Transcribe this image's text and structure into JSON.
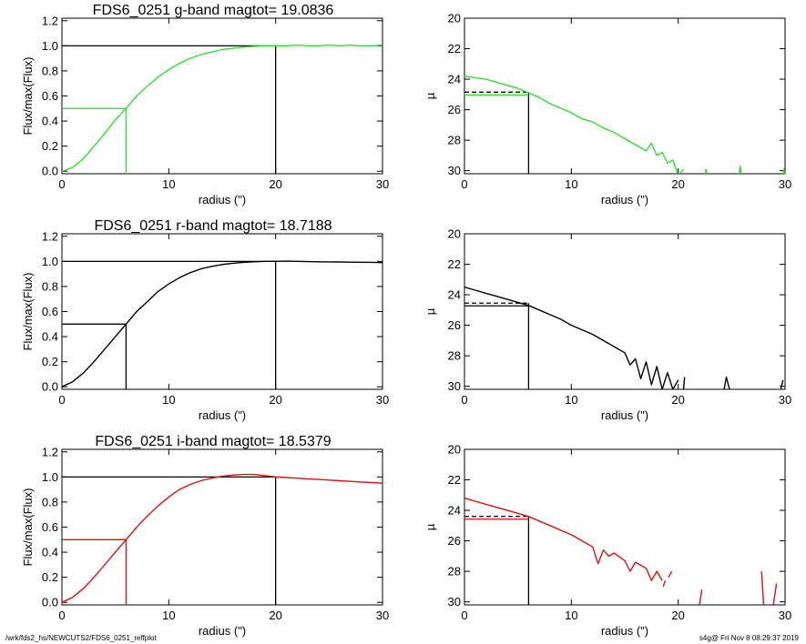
{
  "footer": {
    "left": "/wrk/fds2_hs/NEWCUTS2/FDS6_0251_reffplot",
    "right": "s4g@  Fri Nov  8 08:29:37 2019"
  },
  "chart_data": [
    {
      "type": "line",
      "title": "FDS6_0251 g-band  magtot=     19.0836",
      "xlabel": "radius (\")",
      "ylabel": "Flux/max(Flux)",
      "xlim": [
        0,
        30
      ],
      "ylim": [
        -0.02,
        1.22
      ],
      "xticks": [
        0,
        10,
        20,
        30
      ],
      "yticks": [
        "0.0",
        "0.2",
        "0.4",
        "0.6",
        "0.8",
        "1.0",
        "1.2"
      ],
      "color": "#33dd33",
      "r_half": 6.0,
      "r_tot": 20.0,
      "series": [
        {
          "x": [
            0,
            1,
            2,
            3,
            4,
            5,
            6,
            7,
            8,
            9,
            10,
            11,
            12,
            13,
            14,
            15,
            16,
            17,
            18,
            19,
            20,
            21,
            22,
            23,
            24,
            25,
            26,
            27,
            28,
            29,
            30
          ],
          "y": [
            0.0,
            0.03,
            0.1,
            0.2,
            0.3,
            0.41,
            0.5,
            0.6,
            0.68,
            0.75,
            0.81,
            0.86,
            0.9,
            0.93,
            0.95,
            0.97,
            0.98,
            0.99,
            0.995,
            1.0,
            1.0,
            1.0,
            1.005,
            1.0,
            1.0,
            1.005,
            1.0,
            1.005,
            1.0,
            1.0,
            1.005
          ]
        }
      ]
    },
    {
      "type": "line",
      "title": "",
      "xlabel": "radius (\")",
      "ylabel": "µ",
      "xlim": [
        0,
        30
      ],
      "ylim": [
        30.2,
        20
      ],
      "xticks": [
        0,
        10,
        20,
        30
      ],
      "yticks": [
        "20",
        "22",
        "24",
        "26",
        "28",
        "30"
      ],
      "color": "#33dd33",
      "r_half": 6.0,
      "mu_half": 24.85,
      "series": [
        {
          "x": [
            0,
            1,
            2,
            3,
            4,
            5,
            6,
            7,
            8,
            9,
            10,
            11,
            12,
            13,
            14,
            15,
            16,
            17,
            17.5,
            18,
            18.5,
            19,
            19.5,
            20,
            20.5
          ],
          "y": [
            23.8,
            23.9,
            24.0,
            24.2,
            24.4,
            24.6,
            24.9,
            25.2,
            25.6,
            25.9,
            26.2,
            26.6,
            26.8,
            27.2,
            27.5,
            27.9,
            28.3,
            28.7,
            28.2,
            29.0,
            28.8,
            29.5,
            29.3,
            30.3,
            29.9
          ]
        },
        {
          "x": [
            22.5,
            22.6,
            22.7
          ],
          "y": [
            30.3,
            29.9,
            30.3
          ]
        },
        {
          "x": [
            25.7,
            25.8,
            25.9
          ],
          "y": [
            30.3,
            29.7,
            30.3
          ]
        },
        {
          "x": [
            29.8,
            29.9,
            30.0
          ],
          "y": [
            30.3,
            29.9,
            30.3
          ]
        }
      ]
    },
    {
      "type": "line",
      "title": "FDS6_0251 r-band  magtot=     18.7188",
      "xlabel": "radius (\")",
      "ylabel": "Flux/max(Flux)",
      "xlim": [
        0,
        30
      ],
      "ylim": [
        -0.02,
        1.22
      ],
      "xticks": [
        0,
        10,
        20,
        30
      ],
      "yticks": [
        "0.0",
        "0.2",
        "0.4",
        "0.6",
        "0.8",
        "1.0",
        "1.2"
      ],
      "color": "#000000",
      "r_half": 6.0,
      "r_tot": 20.0,
      "series": [
        {
          "x": [
            0,
            1,
            2,
            3,
            4,
            5,
            6,
            7,
            8,
            9,
            10,
            11,
            12,
            13,
            14,
            15,
            16,
            17,
            18,
            19,
            20,
            21,
            22,
            23,
            24,
            25,
            26,
            27,
            28,
            29,
            30
          ],
          "y": [
            0.0,
            0.04,
            0.11,
            0.2,
            0.3,
            0.4,
            0.5,
            0.6,
            0.68,
            0.76,
            0.82,
            0.87,
            0.91,
            0.94,
            0.96,
            0.975,
            0.985,
            0.992,
            0.997,
            1.0,
            1.0,
            1.002,
            1.0,
            0.998,
            0.997,
            0.996,
            0.995,
            0.994,
            0.993,
            0.992,
            0.99
          ]
        }
      ]
    },
    {
      "type": "line",
      "title": "",
      "xlabel": "radius (\")",
      "ylabel": "µ",
      "xlim": [
        0,
        30
      ],
      "ylim": [
        30.2,
        20
      ],
      "xticks": [
        0,
        10,
        20,
        30
      ],
      "yticks": [
        "20",
        "22",
        "24",
        "26",
        "28",
        "30"
      ],
      "color": "#000000",
      "r_half": 6.0,
      "mu_half": 24.55,
      "series": [
        {
          "x": [
            0,
            1,
            2,
            3,
            4,
            5,
            6,
            7,
            8,
            9,
            10,
            11,
            12,
            13,
            14,
            15,
            15.5,
            16,
            16.5,
            17,
            17.5,
            18,
            18.5,
            19,
            19.5,
            20
          ],
          "y": [
            23.5,
            23.7,
            23.9,
            24.1,
            24.3,
            24.5,
            24.7,
            25.0,
            25.3,
            25.6,
            26.0,
            26.3,
            26.6,
            27.0,
            27.4,
            27.8,
            28.6,
            28.2,
            29.5,
            28.4,
            29.9,
            28.7,
            30.2,
            29.1,
            30.2,
            29.6
          ]
        },
        {
          "x": [
            20.5,
            20.6
          ],
          "y": [
            30.2,
            29.4
          ]
        },
        {
          "x": [
            24.3,
            24.5,
            24.8
          ],
          "y": [
            30.2,
            29.4,
            30.2
          ]
        },
        {
          "x": [
            29.6,
            29.8
          ],
          "y": [
            30.2,
            29.6
          ]
        }
      ]
    },
    {
      "type": "line",
      "title": "FDS6_0251 i-band  magtot=     18.5379",
      "xlabel": "radius (\")",
      "ylabel": "Flux/max(Flux)",
      "xlim": [
        0,
        30
      ],
      "ylim": [
        -0.02,
        1.22
      ],
      "xticks": [
        0,
        10,
        20,
        30
      ],
      "yticks": [
        "0.0",
        "0.2",
        "0.4",
        "0.6",
        "0.8",
        "1.0",
        "1.2"
      ],
      "color": "#dd1111",
      "r_half": 6.0,
      "r_tot": 20.0,
      "series": [
        {
          "x": [
            0,
            1,
            2,
            3,
            4,
            5,
            6,
            7,
            8,
            9,
            10,
            11,
            12,
            13,
            14,
            15,
            16,
            17,
            18,
            19,
            20,
            21,
            22,
            23,
            24,
            25,
            26,
            27,
            28,
            29,
            30
          ],
          "y": [
            0.0,
            0.04,
            0.11,
            0.2,
            0.3,
            0.4,
            0.5,
            0.6,
            0.69,
            0.77,
            0.84,
            0.9,
            0.94,
            0.97,
            0.99,
            1.005,
            1.015,
            1.02,
            1.02,
            1.01,
            1.0,
            0.995,
            0.99,
            0.985,
            0.98,
            0.975,
            0.97,
            0.965,
            0.96,
            0.955,
            0.95
          ]
        }
      ]
    },
    {
      "type": "line",
      "title": "",
      "xlabel": "radius (\")",
      "ylabel": "µ",
      "xlim": [
        0,
        30
      ],
      "ylim": [
        30.2,
        20
      ],
      "xticks": [
        0,
        10,
        20,
        30
      ],
      "yticks": [
        "20",
        "22",
        "24",
        "26",
        "28",
        "30"
      ],
      "color": "#dd1111",
      "r_half": 6.0,
      "mu_half": 24.4,
      "series": [
        {
          "x": [
            0,
            1,
            2,
            3,
            4,
            5,
            6,
            7,
            8,
            9,
            10,
            11,
            12,
            12.5,
            13,
            13.5,
            14,
            15,
            15.5,
            16,
            17,
            17.5,
            18,
            18.5
          ],
          "y": [
            23.2,
            23.4,
            23.6,
            23.8,
            24.0,
            24.2,
            24.4,
            24.7,
            25.0,
            25.3,
            25.6,
            26.0,
            26.4,
            27.5,
            26.6,
            27.0,
            26.8,
            27.3,
            28.0,
            27.4,
            27.8,
            28.6,
            28.0,
            28.6
          ]
        },
        {
          "x": [
            18.6,
            18.8
          ],
          "y": [
            29.0,
            28.6
          ]
        },
        {
          "x": [
            19.1,
            19.4
          ],
          "y": [
            28.4,
            28.0
          ]
        },
        {
          "x": [
            22.0,
            22.2
          ],
          "y": [
            30.2,
            29.2
          ]
        },
        {
          "x": [
            27.8,
            28.0
          ],
          "y": [
            28.0,
            30.2
          ]
        },
        {
          "x": [
            28.9,
            29.2
          ],
          "y": [
            30.2,
            28.8
          ]
        }
      ]
    }
  ]
}
